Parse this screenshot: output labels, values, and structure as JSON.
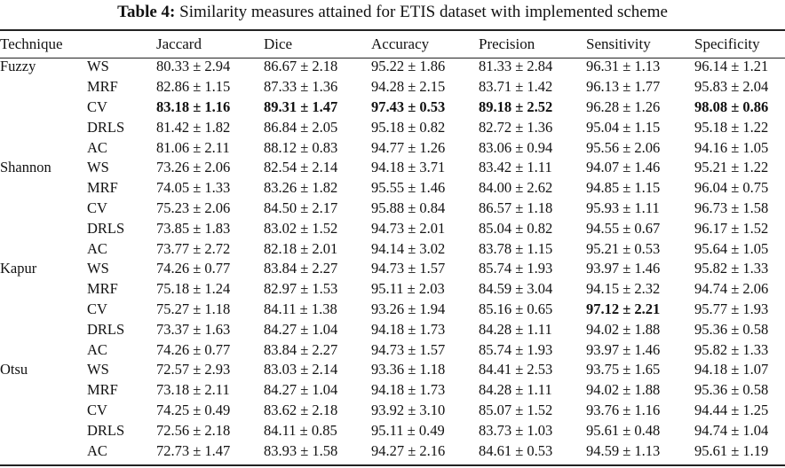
{
  "caption": {
    "label": "Table 4:",
    "text": "Similarity measures attained for ETIS dataset with implemented scheme"
  },
  "columns": [
    "Technique",
    "",
    "Jaccard",
    "Dice",
    "Accuracy",
    "Precision",
    "Sensitivity",
    "Specificity"
  ],
  "rows": [
    {
      "group": "Fuzzy",
      "method": "WS",
      "values": [
        "80.33 ± 2.94",
        "86.67 ± 2.18",
        "95.22 ± 1.86",
        "81.33 ± 2.84",
        "96.31 ± 1.13",
        "96.14 ± 1.21"
      ],
      "bold": [
        false,
        false,
        false,
        false,
        false,
        false
      ]
    },
    {
      "group": "",
      "method": "MRF",
      "values": [
        "82.86 ± 1.15",
        "87.33 ± 1.36",
        "94.28 ± 2.15",
        "83.71 ± 1.42",
        "96.13 ± 1.77",
        "95.83 ± 2.04"
      ],
      "bold": [
        false,
        false,
        false,
        false,
        false,
        false
      ]
    },
    {
      "group": "",
      "method": "CV",
      "values": [
        "83.18 ± 1.16",
        "89.31 ± 1.47",
        "97.43 ± 0.53",
        "89.18 ± 2.52",
        "96.28 ± 1.26",
        "98.08 ± 0.86"
      ],
      "bold": [
        true,
        true,
        true,
        true,
        false,
        true
      ]
    },
    {
      "group": "",
      "method": "DRLS",
      "values": [
        "81.42 ± 1.82",
        "86.84 ± 2.05",
        "95.18 ± 0.82",
        "82.72 ± 1.36",
        "95.04 ± 1.15",
        "95.18 ± 1.22"
      ],
      "bold": [
        false,
        false,
        false,
        false,
        false,
        false
      ]
    },
    {
      "group": "",
      "method": "AC",
      "values": [
        "81.06 ± 2.11",
        "88.12 ± 0.83",
        "94.77 ± 1.26",
        "83.06 ± 0.94",
        "95.56 ± 2.06",
        "94.16 ± 1.05"
      ],
      "bold": [
        false,
        false,
        false,
        false,
        false,
        false
      ]
    },
    {
      "group": "Shannon",
      "method": "WS",
      "values": [
        "73.26 ± 2.06",
        "82.54 ± 2.14",
        "94.18 ± 3.71",
        "83.42 ± 1.11",
        "94.07 ± 1.46",
        "95.21 ± 1.22"
      ],
      "bold": [
        false,
        false,
        false,
        false,
        false,
        false
      ]
    },
    {
      "group": "",
      "method": "MRF",
      "values": [
        "74.05 ± 1.33",
        "83.26 ± 1.82",
        "95.55 ± 1.46",
        "84.00 ± 2.62",
        "94.85 ± 1.15",
        "96.04 ± 0.75"
      ],
      "bold": [
        false,
        false,
        false,
        false,
        false,
        false
      ]
    },
    {
      "group": "",
      "method": "CV",
      "values": [
        "75.23 ± 2.06",
        "84.50 ± 2.17",
        "95.88 ± 0.84",
        "86.57 ± 1.18",
        "95.93 ± 1.11",
        "96.73 ± 1.58"
      ],
      "bold": [
        false,
        false,
        false,
        false,
        false,
        false
      ]
    },
    {
      "group": "",
      "method": "DRLS",
      "values": [
        "73.85 ± 1.83",
        "83.02 ± 1.52",
        "94.73 ± 2.01",
        "85.04 ± 0.82",
        "94.55 ± 0.67",
        "96.17 ± 1.52"
      ],
      "bold": [
        false,
        false,
        false,
        false,
        false,
        false
      ]
    },
    {
      "group": "",
      "method": "AC",
      "values": [
        "73.77 ± 2.72",
        "82.18 ± 2.01",
        "94.14 ± 3.02",
        "83.78 ± 1.15",
        "95.21 ± 0.53",
        "95.64 ± 1.05"
      ],
      "bold": [
        false,
        false,
        false,
        false,
        false,
        false
      ]
    },
    {
      "group": "Kapur",
      "method": "WS",
      "values": [
        "74.26 ± 0.77",
        "83.84 ± 2.27",
        "94.73 ± 1.57",
        "85.74 ± 1.93",
        "93.97 ± 1.46",
        "95.82 ± 1.33"
      ],
      "bold": [
        false,
        false,
        false,
        false,
        false,
        false
      ]
    },
    {
      "group": "",
      "method": "MRF",
      "values": [
        "75.18 ± 1.24",
        "82.97 ± 1.53",
        "95.11 ± 2.03",
        "84.59 ± 3.04",
        "94.15 ± 2.32",
        "94.74 ± 2.06"
      ],
      "bold": [
        false,
        false,
        false,
        false,
        false,
        false
      ]
    },
    {
      "group": "",
      "method": "CV",
      "values": [
        "75.27 ± 1.18",
        "84.11 ± 1.38",
        "93.26 ± 1.94",
        "85.16 ± 0.65",
        "97.12 ± 2.21",
        "95.77 ± 1.93"
      ],
      "bold": [
        false,
        false,
        false,
        false,
        true,
        false
      ]
    },
    {
      "group": "",
      "method": "DRLS",
      "values": [
        "73.37 ± 1.63",
        "84.27 ± 1.04",
        "94.18 ± 1.73",
        "84.28 ± 1.11",
        "94.02 ± 1.88",
        "95.36 ± 0.58"
      ],
      "bold": [
        false,
        false,
        false,
        false,
        false,
        false
      ]
    },
    {
      "group": "",
      "method": "AC",
      "values": [
        "74.26 ± 0.77",
        "83.84 ± 2.27",
        "94.73 ± 1.57",
        "85.74 ± 1.93",
        "93.97 ± 1.46",
        "95.82 ± 1.33"
      ],
      "bold": [
        false,
        false,
        false,
        false,
        false,
        false
      ]
    },
    {
      "group": "Otsu",
      "method": "WS",
      "values": [
        "72.57 ± 2.93",
        "83.03 ± 2.14",
        "93.36 ± 1.18",
        "84.41 ± 2.53",
        "93.75 ± 1.65",
        "94.18 ± 1.07"
      ],
      "bold": [
        false,
        false,
        false,
        false,
        false,
        false
      ]
    },
    {
      "group": "",
      "method": "MRF",
      "values": [
        "73.18 ± 2.11",
        "84.27 ± 1.04",
        "94.18 ± 1.73",
        "84.28 ± 1.11",
        "94.02 ± 1.88",
        "95.36 ± 0.58"
      ],
      "bold": [
        false,
        false,
        false,
        false,
        false,
        false
      ]
    },
    {
      "group": "",
      "method": "CV",
      "values": [
        "74.25 ± 0.49",
        "83.62 ± 2.18",
        "93.92 ± 3.10",
        "85.07 ± 1.52",
        "93.76 ± 1.16",
        "94.44 ± 1.25"
      ],
      "bold": [
        false,
        false,
        false,
        false,
        false,
        false
      ]
    },
    {
      "group": "",
      "method": "DRLS",
      "values": [
        "72.56 ± 2.18",
        "84.11 ± 0.85",
        "95.11 ± 0.49",
        "83.73 ± 1.03",
        "95.61 ± 0.48",
        "94.74 ± 1.04"
      ],
      "bold": [
        false,
        false,
        false,
        false,
        false,
        false
      ]
    },
    {
      "group": "",
      "method": "AC",
      "values": [
        "72.73 ± 1.47",
        "83.93 ± 1.58",
        "94.27 ± 2.16",
        "84.61 ± 0.53",
        "94.59 ± 1.13",
        "95.61 ± 1.19"
      ],
      "bold": [
        false,
        false,
        false,
        false,
        false,
        false
      ]
    }
  ]
}
